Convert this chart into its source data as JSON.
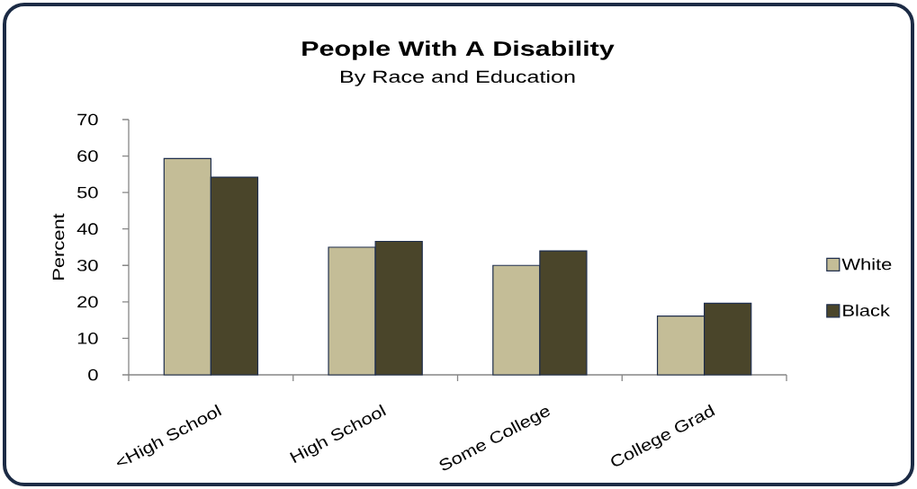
{
  "chart_data": {
    "type": "bar",
    "title": "People With A Disability",
    "subtitle": "By Race and Education",
    "ylabel": "Percent",
    "categories": [
      "<High School",
      "High School",
      "Some College",
      "College Grad"
    ],
    "series": [
      {
        "name": "White",
        "color": "#c4bd97",
        "values": [
          59.3,
          35.0,
          30.0,
          16.1
        ]
      },
      {
        "name": "Black",
        "color": "#4a452a",
        "values": [
          54.2,
          36.6,
          34.0,
          19.6
        ]
      }
    ],
    "ylim": [
      0,
      70
    ],
    "yticks": [
      0,
      10,
      20,
      30,
      40,
      50,
      60,
      70
    ],
    "legend": "right"
  }
}
